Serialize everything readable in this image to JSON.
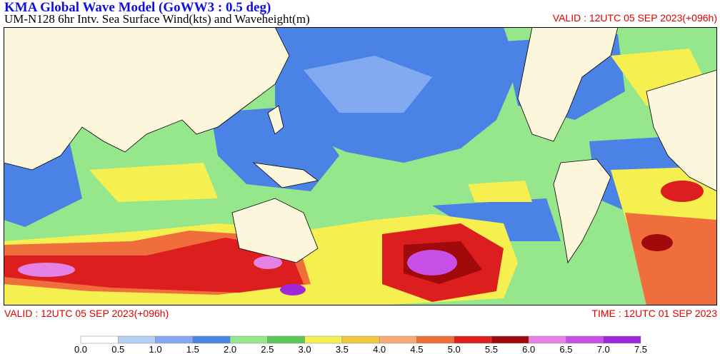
{
  "header": {
    "title": "KMA  Global Wave Model (GoWW3 : 0.5 deg)",
    "subtitle": "UM-N128  6hr Intv. Sea Surface Wind(kts) and Waveheight(m)",
    "valid_top": "VALID : 12UTC 05 SEP 2023(+096h)"
  },
  "footer": {
    "valid": "VALID : 12UTC 05 SEP 2023(+096h)",
    "time": "TIME : 12UTC 01 SEP 2023"
  },
  "colorbar": {
    "labels": [
      "0.0",
      "0.5",
      "1.0",
      "1.5",
      "2.0",
      "2.5",
      "3.0",
      "3.5",
      "4.0",
      "4.5",
      "5.0",
      "5.5",
      "6.0",
      "6.5",
      "7.0",
      "7.5"
    ],
    "colors": [
      "#ffffff",
      "#b4d2f5",
      "#82aaf0",
      "#4b82e6",
      "#96e68c",
      "#5ac85a",
      "#f5f050",
      "#f0c83c",
      "#f5aa78",
      "#f06e3c",
      "#dc1e1e",
      "#a00a0a",
      "#e682e6",
      "#c850e6",
      "#a028dc"
    ]
  }
}
